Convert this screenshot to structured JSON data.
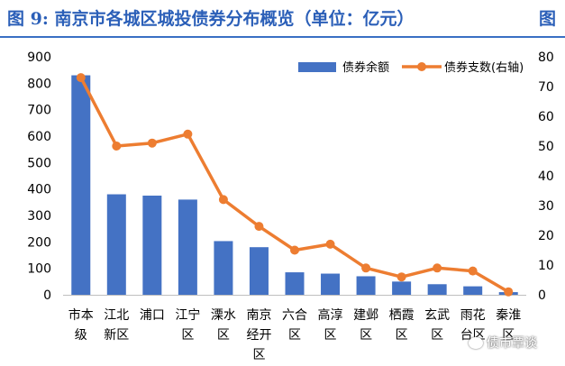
{
  "title": "图 9:  南京市各城区城投债券分布概览（单位：亿元）",
  "title_cut": "图",
  "watermark": "债市覃谈",
  "chart_data": {
    "type": "bar+line",
    "categories": [
      [
        "市本",
        "级"
      ],
      [
        "江北",
        "新区"
      ],
      [
        "浦口"
      ],
      [
        "江宁",
        "区"
      ],
      [
        "溧水",
        "区"
      ],
      [
        "南京",
        "经开",
        "区"
      ],
      [
        "六合",
        "区"
      ],
      [
        "高淳",
        "区"
      ],
      [
        "建邺",
        "区"
      ],
      [
        "栖霞",
        "区"
      ],
      [
        "玄武",
        "区"
      ],
      [
        "雨花",
        "台区"
      ],
      [
        "秦淮",
        "区"
      ]
    ],
    "series": [
      {
        "name": "债券余额",
        "type": "bar",
        "axis": "left",
        "color": "#4472c4",
        "values": [
          830,
          380,
          375,
          360,
          203,
          180,
          85,
          80,
          70,
          50,
          40,
          32,
          10
        ]
      },
      {
        "name": "债券支数(右轴)",
        "type": "line",
        "axis": "right",
        "color": "#ed7d31",
        "values": [
          73,
          50,
          51,
          54,
          32,
          23,
          15,
          17,
          9,
          6,
          9,
          8,
          1
        ]
      }
    ],
    "yleft": {
      "min": 0,
      "max": 900,
      "step": 100
    },
    "yright": {
      "min": 0,
      "max": 80,
      "step": 10
    },
    "legend_position": "top-right",
    "grid": false
  }
}
